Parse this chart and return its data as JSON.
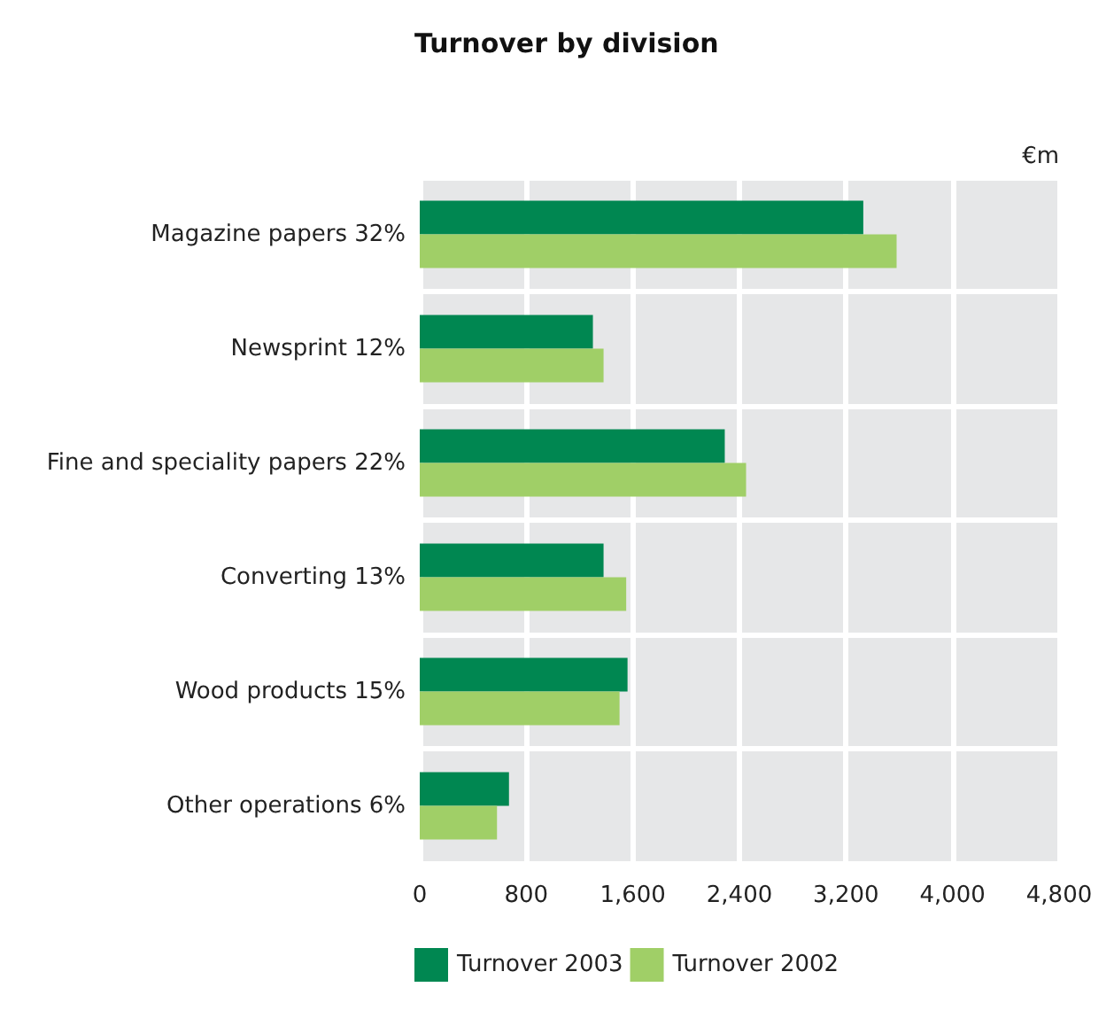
{
  "chart_data": {
    "type": "bar",
    "orientation": "horizontal",
    "title": "Turnover by division",
    "xlabel": "€m",
    "categories": [
      "Magazine papers 32%",
      "Newsprint 12%",
      "Fine and speciality papers 22%",
      "Converting 13%",
      "Wood products 15%",
      "Other operations 6%"
    ],
    "series": [
      {
        "name": "Turnover 2003",
        "color": "#008751",
        "values": [
          3330,
          1300,
          2290,
          1380,
          1560,
          670
        ]
      },
      {
        "name": "Turnover 2002",
        "color": "#a0cf67",
        "values": [
          3580,
          1380,
          2450,
          1550,
          1500,
          580
        ]
      }
    ],
    "xlim": [
      0,
      4800
    ],
    "xticks": [
      0,
      800,
      {
        "value": 1600,
        "label": "1,600"
      },
      {
        "value": 2400,
        "label": "2,400"
      },
      {
        "value": 3200,
        "label": "3,200"
      },
      {
        "value": 4000,
        "label": "4,000"
      },
      {
        "value": 4800,
        "label": "4,800"
      }
    ],
    "grid": true,
    "legend": "bottom left"
  }
}
